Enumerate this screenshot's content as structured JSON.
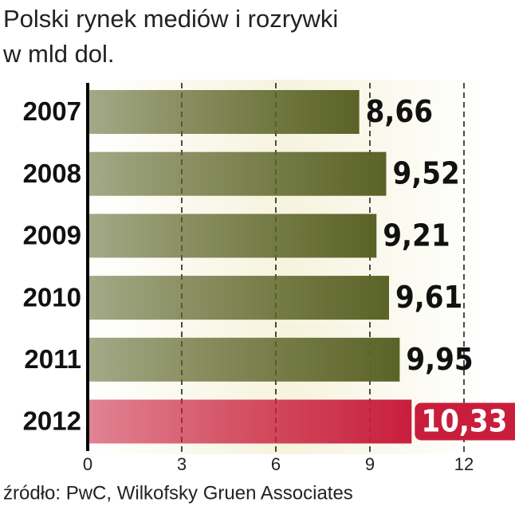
{
  "chart_data": {
    "type": "bar",
    "orientation": "horizontal",
    "title": "Polski rynek mediów i rozrywki",
    "subtitle": "w mld dol.",
    "source": "źródło: PwC, Wilkofsky Gruen Associates",
    "categories": [
      "2007",
      "2008",
      "2009",
      "2010",
      "2011",
      "2012"
    ],
    "values": [
      8.66,
      9.52,
      9.21,
      9.61,
      9.95,
      10.33
    ],
    "value_labels": [
      "8,66",
      "9,52",
      "9,21",
      "9,61",
      "9,95",
      "10,33"
    ],
    "colors": [
      "#5a6327",
      "#5a6327",
      "#5a6327",
      "#5a6327",
      "#5a6327",
      "#c81e3c"
    ],
    "xlim": [
      0,
      12
    ],
    "xticks": [
      0,
      3,
      6,
      9,
      12
    ],
    "grid": true
  }
}
